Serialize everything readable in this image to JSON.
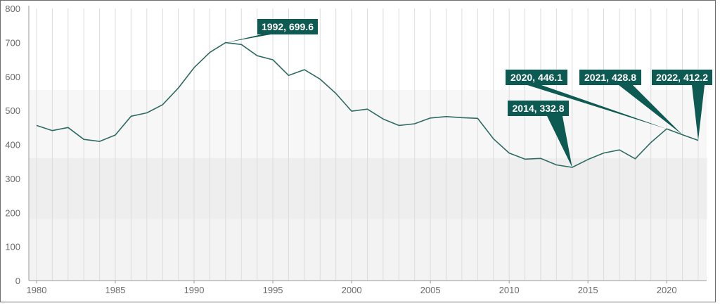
{
  "chart_data": {
    "type": "line",
    "title": "",
    "xlabel": "",
    "ylabel": "",
    "xlim": [
      1980,
      2022
    ],
    "ylim": [
      0,
      800
    ],
    "y_ticks": [
      "0",
      "100",
      "200",
      "300",
      "400",
      "500",
      "600",
      "700",
      "800"
    ],
    "x_ticks": [
      "1980",
      "1985",
      "1990",
      "1995",
      "2000",
      "2005",
      "2010",
      "2015",
      "2020"
    ],
    "grid": "vertical lines at each year",
    "colors": {
      "line": "#2e6b63",
      "callout": "#0d5a52"
    },
    "series": [
      {
        "x": [
          1980,
          1981,
          1982,
          1983,
          1984,
          1985,
          1986,
          1987,
          1988,
          1989,
          1990,
          1991,
          1992,
          1993,
          1994,
          1995,
          1996,
          1997,
          1998,
          1999,
          2000,
          2001,
          2002,
          2003,
          2004,
          2005,
          2006,
          2007,
          2008,
          2009,
          2010,
          2011,
          2012,
          2013,
          2014,
          2015,
          2016,
          2017,
          2018,
          2019,
          2020,
          2021,
          2022
        ],
        "values": [
          456,
          441,
          450,
          415,
          409,
          428,
          483,
          493,
          517,
          566,
          626,
          671,
          699.6,
          694,
          661,
          649,
          603,
          620,
          592,
          550,
          498,
          504,
          475,
          456,
          461,
          478,
          482,
          479,
          477,
          417,
          375,
          357,
          359,
          340,
          332.8,
          356,
          375,
          384,
          358,
          406,
          446.1,
          428.8,
          412.2
        ]
      }
    ],
    "annotations": [
      {
        "label": "1992, 699.6",
        "x": 1992,
        "y": 699.6
      },
      {
        "label": "2014, 332.8",
        "x": 2014,
        "y": 332.8
      },
      {
        "label": "2020, 446.1",
        "x": 2020,
        "y": 446.1
      },
      {
        "label": "2021, 428.8",
        "x": 2021,
        "y": 428.8
      },
      {
        "label": "2022, 412.2",
        "x": 2022,
        "y": 412.2
      }
    ]
  }
}
